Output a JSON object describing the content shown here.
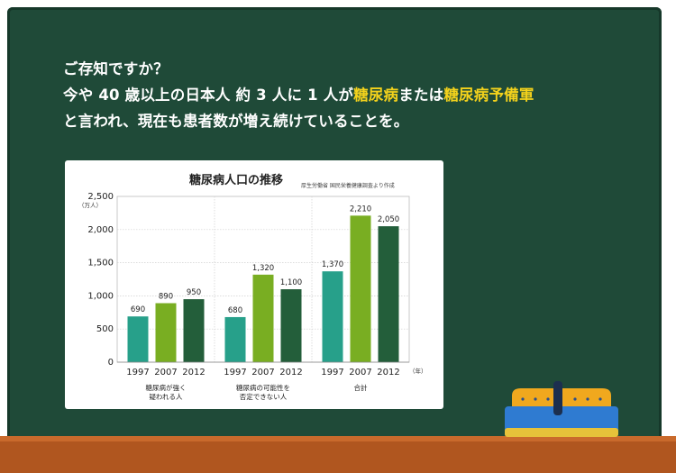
{
  "headline": {
    "line1": "ご存知ですか？",
    "line2_a": "今や 40 歳以上の日本人 約 3 人に 1 人が",
    "line2_h1": "糖尿病",
    "line2_b": "または",
    "line2_h2": "糖尿病予備軍",
    "line3": "と言われ、現在も患者数が増え続けていることを。"
  },
  "colors": {
    "board": "#1f4a38",
    "highlight": "#f4d21c",
    "ledge": "#b0561f",
    "bar_1997": "#27a08a",
    "bar_2007": "#79ae22",
    "bar_2012": "#235e3a"
  },
  "chart_data": {
    "type": "bar",
    "title": "糖尿病人口の推移",
    "source": "厚生労働省 国民栄養健康調査より作成",
    "yunit": "（万人）",
    "xunit": "（年）",
    "ylim": [
      0,
      2500
    ],
    "yticks": [
      "0",
      "500",
      "1,000",
      "1,500",
      "2,000",
      "2,500"
    ],
    "ytick_values": [
      0,
      500,
      1000,
      1500,
      2000,
      2500
    ],
    "grid": true,
    "groups": [
      {
        "label_lines": [
          "糖尿病が強く",
          "疑われる人"
        ],
        "bars": [
          {
            "year": "1997",
            "value": 690,
            "label": "690"
          },
          {
            "year": "2007",
            "value": 890,
            "label": "890"
          },
          {
            "year": "2012",
            "value": 950,
            "label": "950"
          }
        ]
      },
      {
        "label_lines": [
          "糖尿病の可能性を",
          "否定できない人"
        ],
        "bars": [
          {
            "year": "1997",
            "value": 680,
            "label": "680"
          },
          {
            "year": "2007",
            "value": 1320,
            "label": "1,320"
          },
          {
            "year": "2012",
            "value": 1100,
            "label": "1,100"
          }
        ]
      },
      {
        "label_lines": [
          "合計"
        ],
        "bars": [
          {
            "year": "1997",
            "value": 1370,
            "label": "1,370"
          },
          {
            "year": "2007",
            "value": 2210,
            "label": "2,210"
          },
          {
            "year": "2012",
            "value": 2050,
            "label": "2,050"
          }
        ]
      }
    ]
  }
}
